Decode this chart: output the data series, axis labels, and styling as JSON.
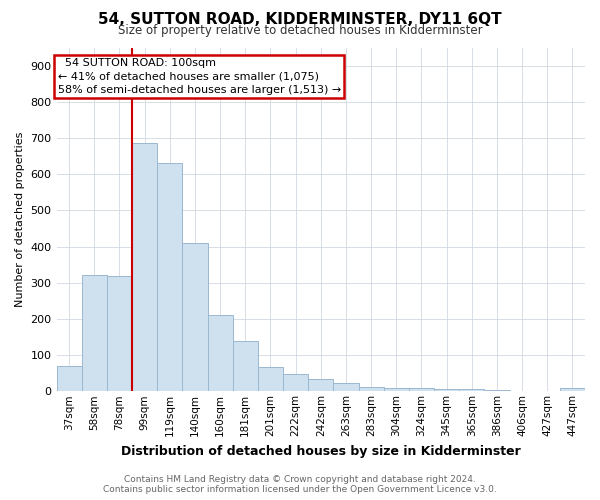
{
  "title": "54, SUTTON ROAD, KIDDERMINSTER, DY11 6QT",
  "subtitle": "Size of property relative to detached houses in Kidderminster",
  "xlabel": "Distribution of detached houses by size in Kidderminster",
  "ylabel": "Number of detached properties",
  "categories": [
    "37sqm",
    "58sqm",
    "78sqm",
    "99sqm",
    "119sqm",
    "140sqm",
    "160sqm",
    "181sqm",
    "201sqm",
    "222sqm",
    "242sqm",
    "263sqm",
    "283sqm",
    "304sqm",
    "324sqm",
    "345sqm",
    "365sqm",
    "386sqm",
    "406sqm",
    "427sqm",
    "447sqm"
  ],
  "values": [
    70,
    320,
    318,
    685,
    630,
    410,
    210,
    138,
    68,
    47,
    33,
    22,
    12,
    8,
    8,
    5,
    5,
    3,
    2,
    2,
    8
  ],
  "bar_color": "#cfe0ef",
  "bar_edge_color": "#9ab8d0",
  "redline_x": 3.5,
  "redline_label": "54 SUTTON ROAD: 100sqm",
  "annotation_line1": "← 41% of detached houses are smaller (1,075)",
  "annotation_line2": "58% of semi-detached houses are larger (1,513) →",
  "annotation_box_color": "#ffffff",
  "annotation_box_edge": "#cc0000",
  "redline_color": "#cc0000",
  "ylim": [
    0,
    950
  ],
  "yticks": [
    0,
    100,
    200,
    300,
    400,
    500,
    600,
    700,
    800,
    900
  ],
  "footer_line1": "Contains HM Land Registry data © Crown copyright and database right 2024.",
  "footer_line2": "Contains public sector information licensed under the Open Government Licence v3.0.",
  "bg_color": "#ffffff",
  "grid_color": "#d0d8e0"
}
